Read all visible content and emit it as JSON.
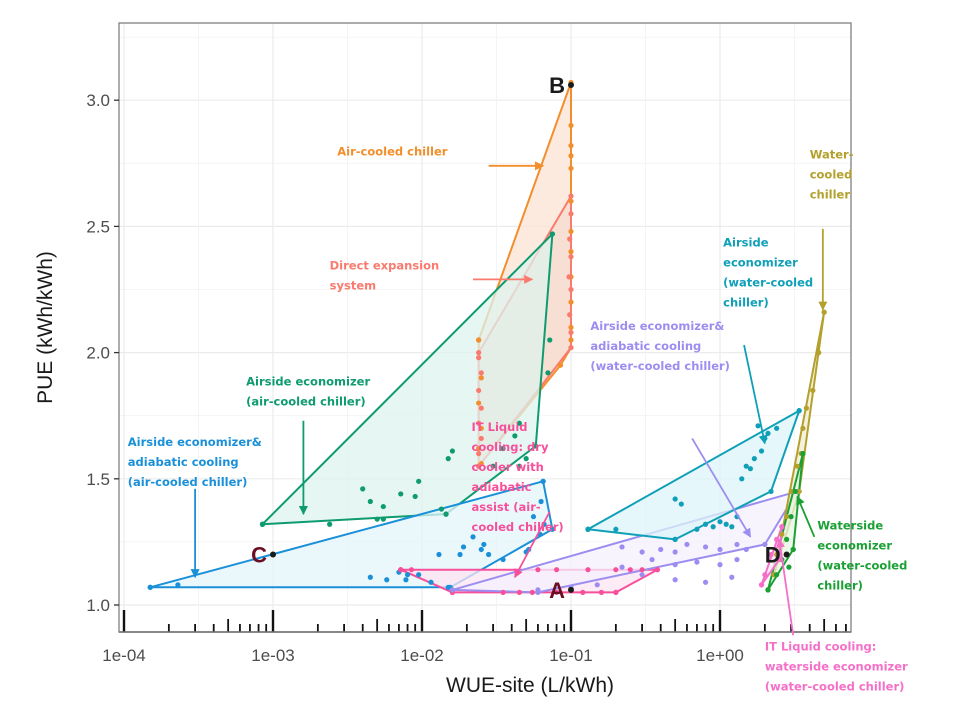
{
  "chart_data": {
    "type": "scatter",
    "title": "",
    "xlabel": "WUE-site (L/kWh)",
    "ylabel": "PUE (kWh/kWh)",
    "x_scale": "log10",
    "xlim": [
      0.0001,
      7.5
    ],
    "ylim": [
      0.9,
      3.25
    ],
    "x_ticks": [
      {
        "value": 0.0001,
        "label": "1e-04"
      },
      {
        "value": 0.001,
        "label": "1e-03"
      },
      {
        "value": 0.01,
        "label": "1e-02"
      },
      {
        "value": 0.1,
        "label": "1e-01"
      },
      {
        "value": 1,
        "label": "1e+00"
      }
    ],
    "y_ticks": [
      {
        "value": 1.0,
        "label": "1.0"
      },
      {
        "value": 1.5,
        "label": "1.5"
      },
      {
        "value": 2.0,
        "label": "2.0"
      },
      {
        "value": 2.5,
        "label": "2.5"
      },
      {
        "value": 3.0,
        "label": "3.0"
      }
    ],
    "grid": true,
    "log_ticks_rug": true,
    "series": [
      {
        "name": "Air-cooled chiller",
        "color": "#f28e2b",
        "fill": "#fbe3d3",
        "hull": [
          [
            0.024,
            1.55
          ],
          [
            0.024,
            2.05
          ],
          [
            0.1,
            3.07
          ],
          [
            0.1,
            2.02
          ],
          [
            0.085,
            1.95
          ],
          [
            0.024,
            1.55
          ]
        ],
        "points": [
          [
            0.1,
            3.07
          ],
          [
            0.1,
            2.9
          ],
          [
            0.1,
            2.82
          ],
          [
            0.1,
            2.78
          ],
          [
            0.1,
            2.73
          ],
          [
            0.1,
            2.6
          ],
          [
            0.1,
            2.48
          ],
          [
            0.1,
            2.4
          ],
          [
            0.1,
            2.3
          ],
          [
            0.1,
            2.2
          ],
          [
            0.1,
            2.1
          ],
          [
            0.1,
            2.05
          ],
          [
            0.024,
            2.05
          ],
          [
            0.025,
            1.9
          ],
          [
            0.024,
            1.8
          ],
          [
            0.025,
            1.7
          ],
          [
            0.024,
            1.62
          ],
          [
            0.025,
            1.56
          ]
        ]
      },
      {
        "name": "Direct expansion system",
        "color": "#fa7a6e",
        "fill": "#f6dccf",
        "hull": [
          [
            0.024,
            1.55
          ],
          [
            0.024,
            2.0
          ],
          [
            0.1,
            2.62
          ],
          [
            0.1,
            2.02
          ],
          [
            0.024,
            1.55
          ]
        ],
        "points": [
          [
            0.1,
            2.55
          ],
          [
            0.098,
            2.45
          ],
          [
            0.1,
            2.38
          ],
          [
            0.097,
            2.3
          ],
          [
            0.1,
            2.25
          ],
          [
            0.098,
            2.15
          ],
          [
            0.1,
            2.08
          ],
          [
            0.024,
            1.98
          ],
          [
            0.025,
            1.92
          ],
          [
            0.024,
            1.85
          ],
          [
            0.025,
            1.78
          ],
          [
            0.024,
            1.72
          ],
          [
            0.025,
            1.66
          ],
          [
            0.024,
            1.6
          ]
        ]
      },
      {
        "name": "Airside economizer (air-cooled chiller)",
        "color": "#0e9b6f",
        "fill": "#def3ee",
        "hull": [
          [
            0.00085,
            1.32
          ],
          [
            0.075,
            2.47
          ],
          [
            0.058,
            1.63
          ],
          [
            0.0145,
            1.36
          ],
          [
            0.00085,
            1.32
          ]
        ],
        "points": [
          [
            0.00085,
            1.32
          ],
          [
            0.0024,
            1.32
          ],
          [
            0.005,
            1.34
          ],
          [
            0.0055,
            1.34
          ],
          [
            0.0145,
            1.36
          ],
          [
            0.0055,
            1.39
          ],
          [
            0.0045,
            1.41
          ],
          [
            0.004,
            1.46
          ],
          [
            0.009,
            1.43
          ],
          [
            0.0072,
            1.44
          ],
          [
            0.0095,
            1.49
          ],
          [
            0.0135,
            1.38
          ],
          [
            0.016,
            1.61
          ],
          [
            0.015,
            1.58
          ],
          [
            0.035,
            1.62
          ],
          [
            0.042,
            1.67
          ],
          [
            0.045,
            1.72
          ],
          [
            0.07,
            1.92
          ],
          [
            0.072,
            2.05
          ],
          [
            0.075,
            2.47
          ],
          [
            0.03,
            1.55
          ],
          [
            0.045,
            1.55
          ],
          [
            0.05,
            1.58
          ]
        ]
      },
      {
        "name": "Airside economizer& adiabatic cooling (air-cooled chiller)",
        "color": "#1a90d9",
        "fill": "#e3f5fb",
        "hull": [
          [
            0.00015,
            1.07
          ],
          [
            0.065,
            1.49
          ],
          [
            0.075,
            1.3
          ],
          [
            0.0155,
            1.07
          ],
          [
            0.00015,
            1.07
          ]
        ],
        "points": [
          [
            0.00015,
            1.07
          ],
          [
            0.00023,
            1.08
          ],
          [
            0.0045,
            1.11
          ],
          [
            0.0058,
            1.1
          ],
          [
            0.0078,
            1.1
          ],
          [
            0.008,
            1.12
          ],
          [
            0.0095,
            1.12
          ],
          [
            0.007,
            1.13
          ],
          [
            0.0115,
            1.09
          ],
          [
            0.015,
            1.07
          ],
          [
            0.013,
            1.2
          ],
          [
            0.018,
            1.2
          ],
          [
            0.019,
            1.23
          ],
          [
            0.022,
            1.27
          ],
          [
            0.026,
            1.24
          ],
          [
            0.025,
            1.22
          ],
          [
            0.028,
            1.2
          ],
          [
            0.035,
            1.18
          ],
          [
            0.05,
            1.21
          ],
          [
            0.052,
            1.22
          ],
          [
            0.063,
            1.41
          ],
          [
            0.056,
            1.35
          ],
          [
            0.066,
            1.32
          ],
          [
            0.062,
            1.28
          ],
          [
            0.065,
            1.49
          ]
        ]
      },
      {
        "name": "IT Liquid cooling: dry cooler with adiabatic assist (air-cooled chiller)",
        "color": "#f7509b",
        "fill": "#fce4f1",
        "hull": [
          [
            0.0072,
            1.14
          ],
          [
            0.38,
            1.14
          ],
          [
            0.2,
            1.05
          ],
          [
            0.016,
            1.05
          ],
          [
            0.0072,
            1.14
          ]
        ],
        "points": [
          [
            0.0072,
            1.14
          ],
          [
            0.0085,
            1.14
          ],
          [
            0.06,
            1.14
          ],
          [
            0.08,
            1.14
          ],
          [
            0.13,
            1.14
          ],
          [
            0.2,
            1.14
          ],
          [
            0.25,
            1.14
          ],
          [
            0.3,
            1.14
          ],
          [
            0.38,
            1.14
          ],
          [
            0.016,
            1.05
          ],
          [
            0.035,
            1.05
          ],
          [
            0.045,
            1.05
          ],
          [
            0.055,
            1.05
          ],
          [
            0.08,
            1.05
          ],
          [
            0.12,
            1.05
          ],
          [
            0.16,
            1.05
          ],
          [
            0.2,
            1.05
          ]
        ]
      },
      {
        "name": "Airside economizer& adiabatic cooling (water-cooled chiller)",
        "color": "#9c8df0",
        "fill": "#f4f0fd",
        "hull": [
          [
            0.016,
            1.06
          ],
          [
            3.3,
            1.45
          ],
          [
            2.0,
            1.24
          ],
          [
            0.06,
            1.05
          ],
          [
            0.016,
            1.06
          ]
        ],
        "points": [
          [
            0.22,
            1.23
          ],
          [
            0.3,
            1.21
          ],
          [
            0.4,
            1.22
          ],
          [
            0.5,
            1.21
          ],
          [
            0.6,
            1.24
          ],
          [
            0.8,
            1.23
          ],
          [
            1.0,
            1.22
          ],
          [
            1.3,
            1.24
          ],
          [
            1.5,
            1.22
          ],
          [
            0.35,
            1.18
          ],
          [
            0.5,
            1.16
          ],
          [
            0.7,
            1.17
          ],
          [
            1.0,
            1.16
          ],
          [
            1.3,
            1.18
          ],
          [
            0.22,
            1.15
          ],
          [
            0.3,
            1.12
          ],
          [
            0.5,
            1.1
          ],
          [
            0.8,
            1.09
          ],
          [
            1.2,
            1.11
          ],
          [
            0.06,
            1.06
          ],
          [
            0.1,
            1.07
          ],
          [
            0.15,
            1.08
          ],
          [
            2.0,
            1.24
          ]
        ]
      },
      {
        "name": "Airside economizer (water-cooled chiller)",
        "color": "#0fa0b8",
        "fill": "#ddf4fa",
        "hull": [
          [
            0.13,
            1.3
          ],
          [
            3.4,
            1.77
          ],
          [
            2.2,
            1.45
          ],
          [
            0.5,
            1.26
          ],
          [
            0.13,
            1.3
          ]
        ],
        "points": [
          [
            0.13,
            1.3
          ],
          [
            0.2,
            1.3
          ],
          [
            0.5,
            1.26
          ],
          [
            0.7,
            1.3
          ],
          [
            0.8,
            1.32
          ],
          [
            0.9,
            1.31
          ],
          [
            1.0,
            1.33
          ],
          [
            1.1,
            1.32
          ],
          [
            1.2,
            1.31
          ],
          [
            1.3,
            1.35
          ],
          [
            0.5,
            1.42
          ],
          [
            0.55,
            1.4
          ],
          [
            1.4,
            1.5
          ],
          [
            1.5,
            1.55
          ],
          [
            1.6,
            1.54
          ],
          [
            1.7,
            1.58
          ],
          [
            1.9,
            1.61
          ],
          [
            2.0,
            1.66
          ],
          [
            2.1,
            1.68
          ],
          [
            1.8,
            1.71
          ],
          [
            2.4,
            1.7
          ],
          [
            3.4,
            1.77
          ]
        ]
      },
      {
        "name": "Water-cooled chiller",
        "color": "#b3a02d",
        "fill": "#f1ecd3",
        "hull": [
          [
            2.3,
            1.12
          ],
          [
            5.0,
            2.16
          ],
          [
            3.4,
            1.45
          ],
          [
            2.3,
            1.12
          ]
        ],
        "points": [
          [
            5.0,
            2.16
          ],
          [
            4.6,
            2.0
          ],
          [
            4.2,
            1.85
          ],
          [
            3.8,
            1.78
          ],
          [
            3.6,
            1.7
          ],
          [
            3.5,
            1.6
          ],
          [
            3.3,
            1.55
          ],
          [
            3.0,
            1.45
          ],
          [
            2.8,
            1.35
          ],
          [
            2.6,
            1.28
          ],
          [
            2.4,
            1.2
          ]
        ]
      },
      {
        "name": "Waterside economizer (water-cooled chiller)",
        "color": "#1aa033",
        "fill": "#e6f5e1",
        "hull": [
          [
            2.1,
            1.06
          ],
          [
            3.6,
            1.6
          ],
          [
            3.1,
            1.22
          ],
          [
            2.1,
            1.06
          ]
        ],
        "points": [
          [
            2.1,
            1.06
          ],
          [
            2.4,
            1.12
          ],
          [
            2.6,
            1.18
          ],
          [
            2.8,
            1.26
          ],
          [
            3.0,
            1.35
          ],
          [
            3.2,
            1.45
          ],
          [
            3.6,
            1.6
          ],
          [
            3.1,
            1.22
          ],
          [
            2.9,
            1.15
          ]
        ]
      },
      {
        "name": "IT Liquid cooling: waterside economizer (water-cooled chiller)",
        "color": "#f56fc9",
        "fill": "#fce4f4",
        "hull": [
          [
            1.9,
            1.08
          ],
          [
            2.6,
            1.31
          ],
          [
            2.5,
            1.18
          ],
          [
            1.9,
            1.08
          ]
        ],
        "points": [
          [
            1.9,
            1.08
          ],
          [
            2.0,
            1.12
          ],
          [
            2.2,
            1.2
          ],
          [
            2.4,
            1.26
          ],
          [
            2.6,
            1.31
          ],
          [
            2.5,
            1.18
          ]
        ]
      }
    ],
    "labeled_points": [
      {
        "label": "A",
        "x": 0.1,
        "y": 1.06,
        "color": "#6b0d23"
      },
      {
        "label": "B",
        "x": 0.1,
        "y": 3.06,
        "color": "#1a1a1a"
      },
      {
        "label": "C",
        "x": 0.001,
        "y": 1.2,
        "color": "#6b0d23"
      },
      {
        "label": "D",
        "x": 2.8,
        "y": 1.2,
        "color": "#1a1a1a"
      }
    ],
    "annotations": [
      {
        "series": 0,
        "lines": [
          "Air-cooled chiller"
        ],
        "pos": [
          0.0027,
          2.78
        ],
        "arrow_from": [
          0.028,
          2.74
        ],
        "arrow_to": [
          0.065,
          2.74
        ]
      },
      {
        "series": 1,
        "lines": [
          "Direct expansion",
          "system"
        ],
        "pos": [
          0.0024,
          2.33
        ],
        "arrow_from": [
          0.022,
          2.29
        ],
        "arrow_to": [
          0.055,
          2.29
        ]
      },
      {
        "series": 2,
        "lines": [
          "Airside economizer",
          "(air-cooled chiller)"
        ],
        "pos": [
          0.00066,
          1.87
        ],
        "arrow_from": [
          0.0016,
          1.73
        ],
        "arrow_to": [
          0.0016,
          1.36
        ]
      },
      {
        "series": 3,
        "lines": [
          "Airside economizer&",
          "adiabatic cooling",
          "(air-cooled chiller)"
        ],
        "pos": [
          0.000106,
          1.63
        ],
        "arrow_from": [
          0.0003,
          1.46
        ],
        "arrow_to": [
          0.0003,
          1.11
        ]
      },
      {
        "series": 4,
        "lines": [
          "IT Liquid",
          "cooling: dry",
          "cooler with",
          "adiabatic",
          "assist (air-",
          "cooled chiller)"
        ],
        "pos": [
          0.0215,
          1.69
        ],
        "arrow_from": [
          0.072,
          1.37
        ],
        "arrow_to": [
          0.042,
          1.11
        ]
      },
      {
        "series": 5,
        "lines": [
          "Airside economizer&",
          "adiabatic cooling",
          "(water-cooled chiller)"
        ],
        "pos": [
          0.135,
          2.09
        ],
        "arrow_from": [
          0.65,
          1.66
        ],
        "arrow_to": [
          1.6,
          1.27
        ]
      },
      {
        "series": 6,
        "lines": [
          "Airside",
          "economizer",
          "(water-cooled",
          "chiller)"
        ],
        "pos": [
          1.05,
          2.42
        ],
        "arrow_from": [
          1.45,
          2.03
        ],
        "arrow_to": [
          2.0,
          1.64
        ]
      },
      {
        "series": 7,
        "lines": [
          "Water-",
          "cooled",
          "chiller"
        ],
        "pos": [
          4.0,
          2.77
        ],
        "arrow_from": [
          4.9,
          2.49
        ],
        "arrow_to": [
          4.9,
          2.17
        ]
      },
      {
        "series": 8,
        "lines": [
          "Waterside",
          "economizer",
          "(water-cooled",
          "chiller)"
        ],
        "pos": [
          4.5,
          1.3
        ],
        "arrow_from": [
          4.3,
          1.27
        ],
        "arrow_to": [
          3.3,
          1.43
        ]
      },
      {
        "series": 9,
        "lines": [
          "IT Liquid cooling:",
          "waterside economizer",
          "(water-cooled chiller)"
        ],
        "pos": [
          2.0,
          0.82
        ],
        "arrow_from": [
          3.1,
          0.88
        ],
        "arrow_to": [
          2.5,
          1.26
        ]
      }
    ]
  }
}
